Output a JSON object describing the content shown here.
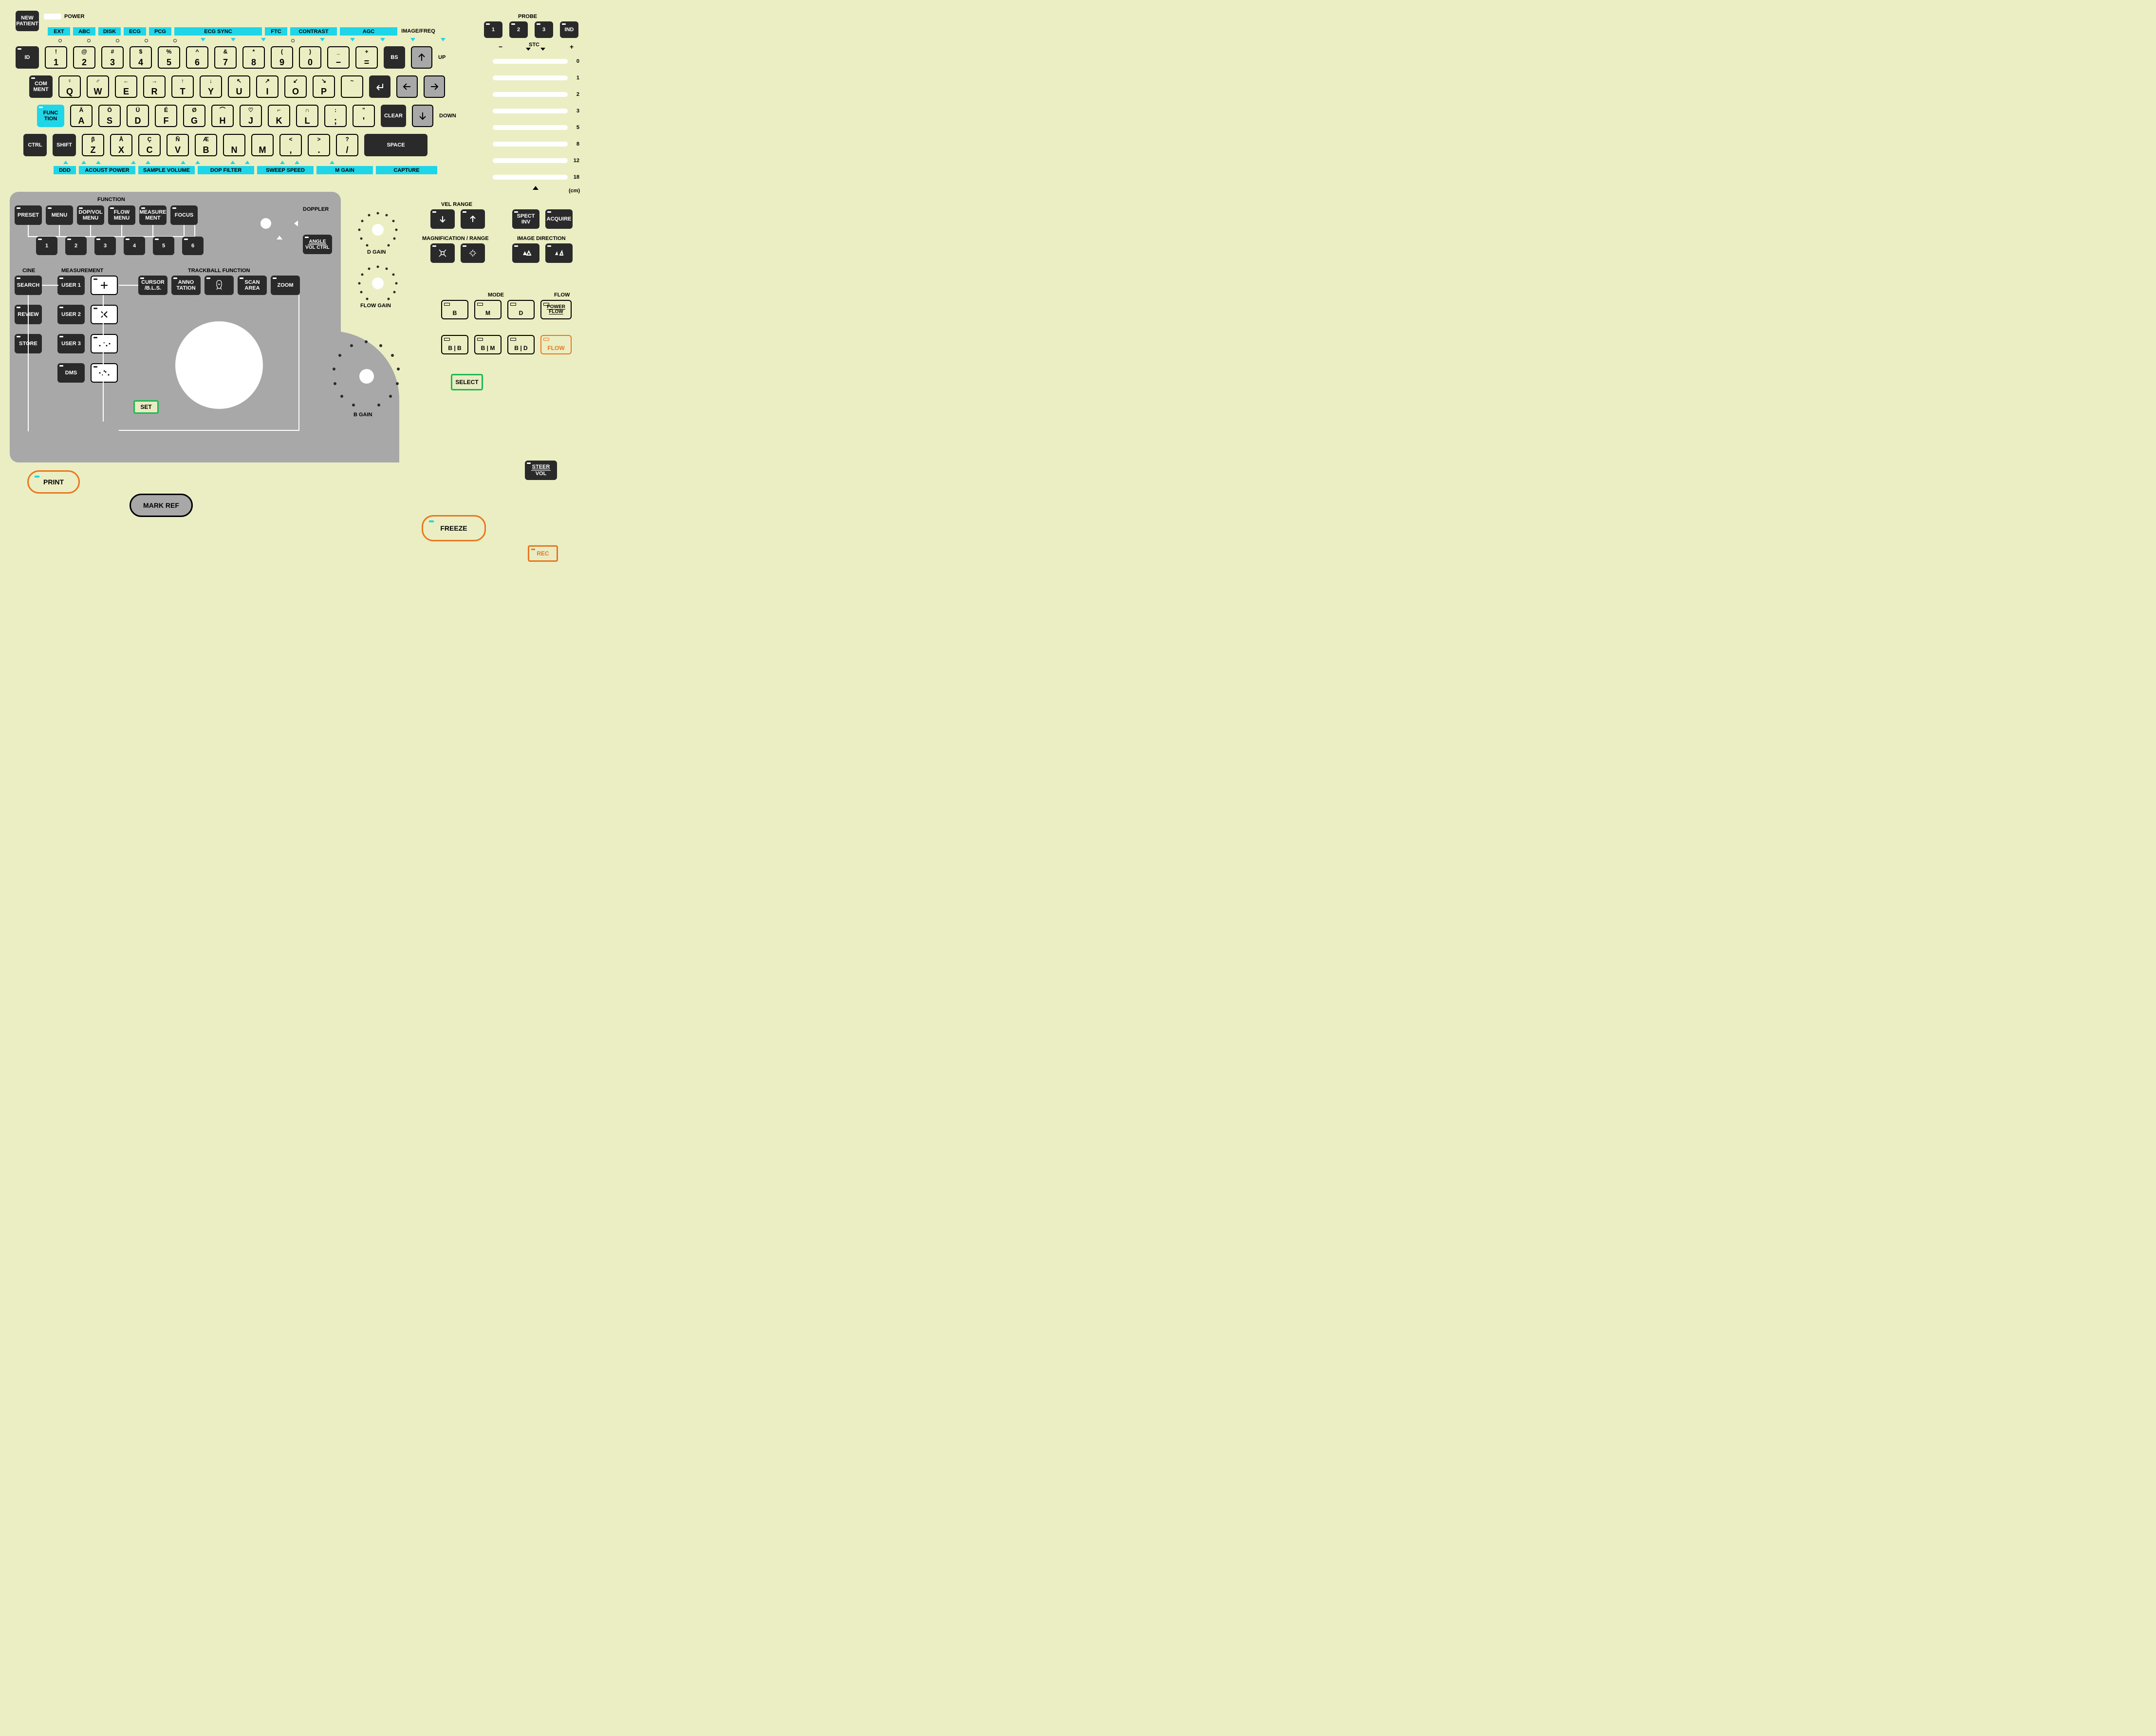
{
  "top": {
    "new_patient": "NEW\nPATIENT",
    "power": "POWER",
    "probe_title": "PROBE",
    "probe": [
      "1",
      "2",
      "3",
      "IND"
    ],
    "stc": "STC",
    "stc_minus": "−",
    "stc_plus": "+",
    "stc_labels": [
      "0",
      "1",
      "2",
      "3",
      "5",
      "8",
      "12",
      "18"
    ],
    "stc_unit": "(cm)"
  },
  "cyan_top": [
    "EXT",
    "ABC",
    "DISK",
    "ECG",
    "PCG",
    "ECG SYNC",
    "FTC",
    "CONTRAST",
    "AGC",
    "IMAGE/FREQ"
  ],
  "cyan_bottom": [
    "DDD",
    "ACOUST POWER",
    "SAMPLE VOLUME",
    "DOP FILTER",
    "SWEEP SPEED",
    "M GAIN",
    "CAPTURE"
  ],
  "row1": {
    "id": "ID",
    "keys": [
      {
        "sym": "!",
        "main": "1"
      },
      {
        "sym": "@",
        "main": "2"
      },
      {
        "sym": "#",
        "main": "3"
      },
      {
        "sym": "$",
        "main": "4"
      },
      {
        "sym": "%",
        "main": "5"
      },
      {
        "sym": "^",
        "main": "6"
      },
      {
        "sym": "&",
        "main": "7"
      },
      {
        "sym": "*",
        "main": "8"
      },
      {
        "sym": "(",
        "main": "9"
      },
      {
        "sym": ")",
        "main": "0"
      },
      {
        "sym": "_",
        "main": "−"
      },
      {
        "sym": "+",
        "main": "="
      }
    ],
    "bs": "BS",
    "up": "UP"
  },
  "row2": {
    "comment": "COM\nMENT",
    "keys": [
      {
        "sym": "♀",
        "main": "Q"
      },
      {
        "sym": "♂",
        "main": "W"
      },
      {
        "sym": "←",
        "main": "E"
      },
      {
        "sym": "→",
        "main": "R"
      },
      {
        "sym": "↑",
        "main": "T"
      },
      {
        "sym": "↓",
        "main": "Y"
      },
      {
        "sym": "↖",
        "main": "U"
      },
      {
        "sym": "↗",
        "main": "I"
      },
      {
        "sym": "↙",
        "main": "O"
      },
      {
        "sym": "↘",
        "main": "P"
      },
      {
        "sym": "~",
        "main": ""
      }
    ]
  },
  "row3": {
    "function": "FUNC\nTION",
    "keys": [
      {
        "sym": "Ä",
        "main": "A"
      },
      {
        "sym": "Ö",
        "main": "S"
      },
      {
        "sym": "Ü",
        "main": "D"
      },
      {
        "sym": "É",
        "main": "F"
      },
      {
        "sym": "Ø",
        "main": "G"
      },
      {
        "sym": "⌒",
        "main": "H"
      },
      {
        "sym": "♡",
        "main": "J"
      },
      {
        "sym": "⌐",
        "main": "K"
      },
      {
        "sym": "∩",
        "main": "L"
      },
      {
        "sym": ":",
        "main": ";"
      },
      {
        "sym": "\"",
        "main": "'"
      }
    ],
    "clear": "CLEAR",
    "down": "DOWN"
  },
  "row4": {
    "ctrl": "CTRL",
    "shift": "SHIFT",
    "keys": [
      {
        "sym": "β",
        "main": "Z"
      },
      {
        "sym": "Å",
        "main": "X"
      },
      {
        "sym": "Ç",
        "main": "C"
      },
      {
        "sym": "Ñ",
        "main": "V"
      },
      {
        "sym": "Æ",
        "main": "B"
      },
      {
        "sym": "",
        "main": "N"
      },
      {
        "sym": "",
        "main": "M"
      },
      {
        "sym": "<",
        "main": ","
      },
      {
        "sym": ">",
        "main": "."
      },
      {
        "sym": "?",
        "main": "/"
      }
    ],
    "space": "SPACE"
  },
  "panel": {
    "function_title": "FUNCTION",
    "top_row": [
      "PRESET",
      "MENU",
      "DOP/VOL\nMENU",
      "FLOW\nMENU",
      "MEASURE\nMENT",
      "FOCUS"
    ],
    "num_row": [
      "1",
      "2",
      "3",
      "4",
      "5",
      "6"
    ],
    "cine_title": "CINE",
    "meas_title": "MEASUREMENT",
    "tb_title": "TRACKBALL FUNCTION",
    "cine": [
      "SEARCH",
      "REVIEW",
      "STORE"
    ],
    "user": [
      "USER 1",
      "USER 2",
      "USER 3",
      "DMS"
    ],
    "tb": [
      "CURSOR\n/B.L.S.",
      "ANNO\nTATION",
      "BODY",
      "SCAN\nAREA",
      "ZOOM"
    ],
    "set": "SET",
    "print": "PRINT",
    "mark_ref": "MARK REF",
    "doppler": "DOPPLER",
    "angle": "ANGLE",
    "volctrl": "VOL CTRL"
  },
  "knobs": {
    "d_gain": "D GAIN",
    "flow_gain": "FLOW GAIN",
    "b_gain": "B GAIN"
  },
  "right": {
    "vel_range": "VEL RANGE",
    "mag_range": "MAGNIFICATION / RANGE",
    "spect_inv": "SPECT\nINV",
    "acquire": "ACQUIRE",
    "img_dir": "IMAGE DIRECTION",
    "mode_title": "MODE",
    "flow_title": "FLOW",
    "modes": [
      "B",
      "M",
      "D"
    ],
    "power_flow": "POWER\nFLOW",
    "modes2": [
      "B | B",
      "B | M",
      "B | D"
    ],
    "flow": "FLOW",
    "select": "SELECT",
    "steer": "STEER",
    "vol": "VOL",
    "freeze": "FREEZE",
    "rec": "REC"
  },
  "colors": {
    "bg": "#ebeec2",
    "cyan": "#1fd5e8",
    "dark": "#2a2a2a",
    "grey": "#a8a8a8",
    "orange": "#e87722",
    "green": "#1db954",
    "white": "#ffffff"
  }
}
